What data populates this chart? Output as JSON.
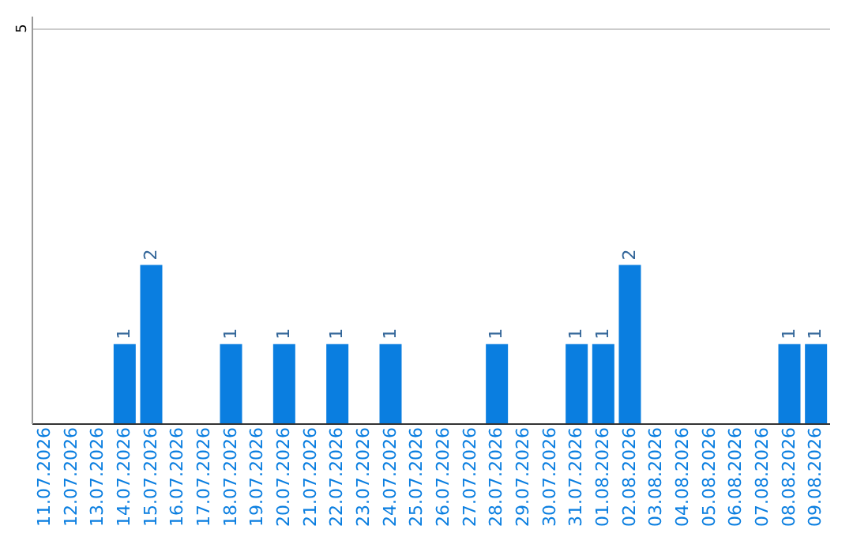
{
  "chart_data": {
    "type": "bar",
    "categories": [
      "11.07.2026",
      "12.07.2026",
      "13.07.2026",
      "14.07.2026",
      "15.07.2026",
      "16.07.2026",
      "17.07.2026",
      "18.07.2026",
      "19.07.2026",
      "20.07.2026",
      "21.07.2026",
      "22.07.2026",
      "23.07.2026",
      "24.07.2026",
      "25.07.2026",
      "26.07.2026",
      "27.07.2026",
      "28.07.2026",
      "29.07.2026",
      "30.07.2026",
      "31.07.2026",
      "01.08.2026",
      "02.08.2026",
      "03.08.2026",
      "04.08.2026",
      "05.08.2026",
      "06.08.2026",
      "07.08.2026",
      "08.08.2026",
      "09.08.2026"
    ],
    "values": [
      0,
      0,
      0,
      1,
      2,
      0,
      0,
      1,
      0,
      1,
      0,
      1,
      0,
      1,
      0,
      0,
      0,
      1,
      0,
      0,
      1,
      1,
      2,
      0,
      0,
      0,
      0,
      0,
      1,
      1
    ],
    "value_labels": [
      null,
      null,
      null,
      "1",
      "2",
      null,
      null,
      "1",
      null,
      "1",
      null,
      "1",
      null,
      "1",
      null,
      null,
      null,
      "1",
      null,
      null,
      "1",
      "1",
      "2",
      null,
      null,
      null,
      null,
      null,
      "1",
      "1"
    ],
    "color": "#0a7ee0",
    "ylim": [
      0,
      5.15
    ],
    "yticks": [
      5
    ],
    "grid": "y"
  }
}
